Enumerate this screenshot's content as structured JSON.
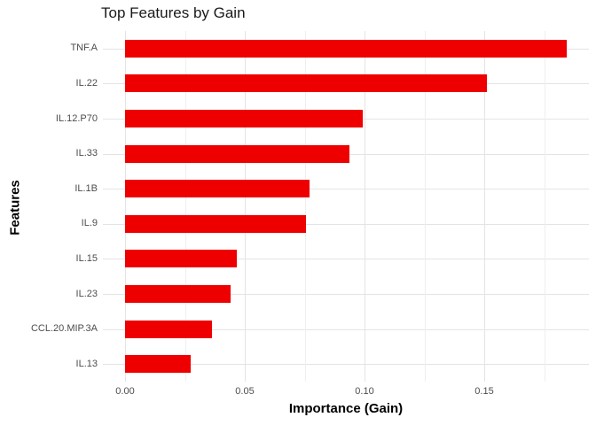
{
  "title": "Top Features by Gain",
  "axes": {
    "x_title": "Importance (Gain)",
    "y_title": "Features"
  },
  "colors": {
    "bar": "#ee0000",
    "grid_major": "#e4e4e4",
    "grid_minor": "#efefef",
    "tick_label": "#4d4d4d"
  },
  "chart_data": {
    "type": "bar",
    "orientation": "horizontal",
    "title": "Top Features by Gain",
    "xlabel": "Importance (Gain)",
    "ylabel": "Features",
    "categories": [
      "TNF.A",
      "IL.22",
      "IL.12.P70",
      "IL.33",
      "IL.1B",
      "IL.9",
      "IL.15",
      "IL.23",
      "CCL.20.MIP.3A",
      "IL.13"
    ],
    "values": [
      0.1845,
      0.1511,
      0.0993,
      0.0937,
      0.077,
      0.0756,
      0.0467,
      0.0441,
      0.0363,
      0.0274
    ],
    "xlim": [
      -0.0092,
      0.1936
    ],
    "x_major_ticks": [
      0.0,
      0.05,
      0.1,
      0.15
    ],
    "x_major_tick_labels": [
      "0.00",
      "0.05",
      "0.10",
      "0.15"
    ],
    "x_minor_ticks": [
      0.025,
      0.075,
      0.125,
      0.175
    ],
    "grid": true,
    "legend": false,
    "bar_color": "#ee0000"
  }
}
